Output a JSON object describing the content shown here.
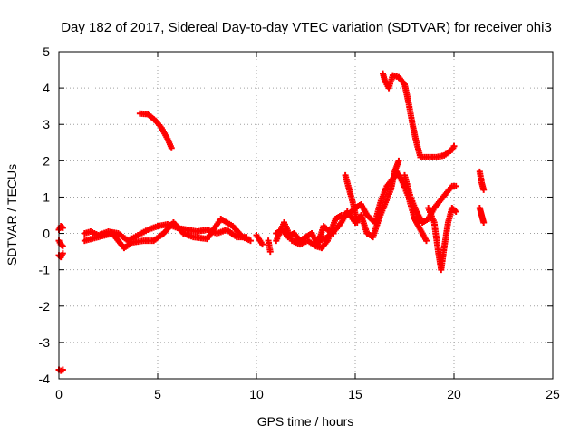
{
  "chart_data": {
    "type": "scatter",
    "title": "Day 182 of 2017, Sidereal Day-to-day VTEC variation (SDTVAR) for receiver ohi3",
    "xlabel": "GPS time / hours",
    "ylabel": "SDTVAR / TECUs",
    "xlim": [
      0,
      25
    ],
    "ylim": [
      -4,
      5
    ],
    "xticks": [
      0,
      5,
      10,
      15,
      20,
      25
    ],
    "yticks": [
      -4,
      -3,
      -2,
      -1,
      0,
      1,
      2,
      3,
      4,
      5
    ],
    "x_tick_labels": [
      "0",
      "5",
      "10",
      "15",
      "20",
      "25"
    ],
    "y_tick_labels": [
      "-4",
      "-3",
      "-2",
      "-1",
      "0",
      "1",
      "2",
      "3",
      "4",
      "5"
    ],
    "grid": true,
    "marker": "+",
    "color": "#ff0000",
    "series": [
      {
        "segments": [
          [
            [
              0.0,
              0.1
            ],
            [
              0.1,
              0.2
            ],
            [
              0.2,
              0.15
            ]
          ],
          [
            [
              0.0,
              -0.2
            ],
            [
              0.1,
              -0.3
            ],
            [
              0.2,
              -0.35
            ]
          ],
          [
            [
              0.0,
              -0.6
            ],
            [
              0.1,
              -0.65
            ],
            [
              0.2,
              -0.55
            ]
          ],
          [
            [
              0.0,
              -3.75
            ],
            [
              0.1,
              -3.78
            ],
            [
              0.2,
              -3.75
            ]
          ],
          [
            [
              1.3,
              0.0
            ],
            [
              1.6,
              0.05
            ],
            [
              2.0,
              -0.05
            ],
            [
              2.5,
              0.05
            ],
            [
              3.0,
              0.0
            ],
            [
              3.5,
              -0.2
            ],
            [
              4.0,
              -0.05
            ],
            [
              4.5,
              0.1
            ],
            [
              5.0,
              0.2
            ],
            [
              5.5,
              0.25
            ],
            [
              6.0,
              0.15
            ],
            [
              6.5,
              0.1
            ],
            [
              7.0,
              0.05
            ],
            [
              7.5,
              0.1
            ],
            [
              8.0,
              0.0
            ],
            [
              8.5,
              0.1
            ],
            [
              9.0,
              -0.1
            ],
            [
              9.5,
              -0.1
            ]
          ],
          [
            [
              1.3,
              -0.2
            ],
            [
              2.0,
              -0.1
            ],
            [
              2.7,
              0.0
            ],
            [
              3.3,
              -0.4
            ],
            [
              3.7,
              -0.25
            ],
            [
              4.3,
              -0.2
            ],
            [
              4.8,
              -0.2
            ],
            [
              5.3,
              0.0
            ],
            [
              5.8,
              0.3
            ],
            [
              6.3,
              0.0
            ],
            [
              6.8,
              -0.1
            ],
            [
              7.5,
              -0.15
            ],
            [
              8.2,
              0.4
            ],
            [
              8.8,
              0.2
            ],
            [
              9.3,
              -0.1
            ],
            [
              9.7,
              -0.2
            ]
          ],
          [
            [
              10.0,
              -0.05
            ],
            [
              10.3,
              -0.3
            ]
          ],
          [
            [
              10.6,
              -0.2
            ],
            [
              10.7,
              -0.5
            ]
          ],
          [
            [
              11.0,
              0.0
            ],
            [
              11.3,
              0.1
            ],
            [
              11.6,
              -0.1
            ],
            [
              11.9,
              0.0
            ],
            [
              12.2,
              -0.2
            ],
            [
              12.5,
              -0.1
            ],
            [
              12.8,
              0.0
            ],
            [
              13.1,
              -0.3
            ],
            [
              13.4,
              0.2
            ],
            [
              13.6,
              0.1
            ],
            [
              13.9,
              0.0
            ]
          ],
          [
            [
              11.0,
              -0.2
            ],
            [
              11.4,
              0.3
            ],
            [
              11.8,
              -0.2
            ],
            [
              12.2,
              -0.3
            ],
            [
              12.6,
              -0.2
            ],
            [
              13.0,
              -0.35
            ],
            [
              13.3,
              -0.4
            ],
            [
              13.6,
              -0.2
            ],
            [
              14.0,
              0.4
            ],
            [
              14.3,
              0.5
            ],
            [
              14.6,
              0.5
            ],
            [
              15.0,
              0.7
            ],
            [
              15.3,
              0.8
            ],
            [
              15.6,
              0.5
            ],
            [
              16.0,
              0.3
            ],
            [
              16.3,
              0.9
            ],
            [
              16.6,
              1.3
            ],
            [
              16.9,
              1.5
            ],
            [
              17.1,
              1.7
            ],
            [
              17.4,
              1.4
            ],
            [
              17.7,
              1.0
            ],
            [
              18.0,
              0.4
            ],
            [
              18.3,
              0.1
            ],
            [
              18.6,
              -0.2
            ]
          ],
          [
            [
              13.2,
              -0.2
            ],
            [
              13.6,
              -0.1
            ],
            [
              14.0,
              0.1
            ],
            [
              14.3,
              0.3
            ],
            [
              14.6,
              0.6
            ],
            [
              15.0,
              0.3
            ],
            [
              15.3,
              0.5
            ],
            [
              15.6,
              0.0
            ],
            [
              15.9,
              -0.1
            ],
            [
              16.2,
              0.4
            ],
            [
              16.5,
              0.8
            ],
            [
              16.8,
              1.2
            ],
            [
              17.0,
              1.7
            ],
            [
              17.2,
              2.0
            ]
          ],
          [
            [
              14.5,
              1.6
            ],
            [
              14.7,
              1.2
            ],
            [
              14.9,
              0.8
            ],
            [
              15.1,
              0.3
            ]
          ],
          [
            [
              17.5,
              1.6
            ],
            [
              17.8,
              1.0
            ],
            [
              18.1,
              0.6
            ],
            [
              18.4,
              0.3
            ],
            [
              18.7,
              0.4
            ],
            [
              19.0,
              0.7
            ],
            [
              19.3,
              0.9
            ],
            [
              19.6,
              1.1
            ],
            [
              19.9,
              1.3
            ],
            [
              20.1,
              1.3
            ]
          ],
          [
            [
              18.7,
              0.7
            ],
            [
              19.0,
              0.3
            ],
            [
              19.2,
              -0.5
            ],
            [
              19.35,
              -1.0
            ],
            [
              19.5,
              -0.4
            ],
            [
              19.7,
              0.3
            ],
            [
              19.9,
              0.7
            ],
            [
              20.1,
              0.6
            ]
          ],
          [
            [
              4.1,
              3.3
            ],
            [
              4.5,
              3.28
            ],
            [
              4.9,
              3.1
            ],
            [
              5.2,
              2.9
            ],
            [
              5.5,
              2.6
            ],
            [
              5.7,
              2.35
            ]
          ],
          [
            [
              16.4,
              4.4
            ],
            [
              16.5,
              4.2
            ],
            [
              16.7,
              4.0
            ],
            [
              16.9,
              4.35
            ],
            [
              17.2,
              4.3
            ],
            [
              17.5,
              4.1
            ],
            [
              17.7,
              3.6
            ],
            [
              17.9,
              3.0
            ],
            [
              18.1,
              2.5
            ],
            [
              18.3,
              2.1
            ],
            [
              18.7,
              2.1
            ],
            [
              19.1,
              2.1
            ],
            [
              19.5,
              2.15
            ],
            [
              19.9,
              2.3
            ],
            [
              20.0,
              2.4
            ]
          ],
          [
            [
              21.3,
              1.7
            ],
            [
              21.4,
              1.4
            ],
            [
              21.5,
              1.2
            ]
          ],
          [
            [
              21.3,
              0.7
            ],
            [
              21.4,
              0.5
            ],
            [
              21.5,
              0.3
            ]
          ]
        ]
      }
    ]
  }
}
